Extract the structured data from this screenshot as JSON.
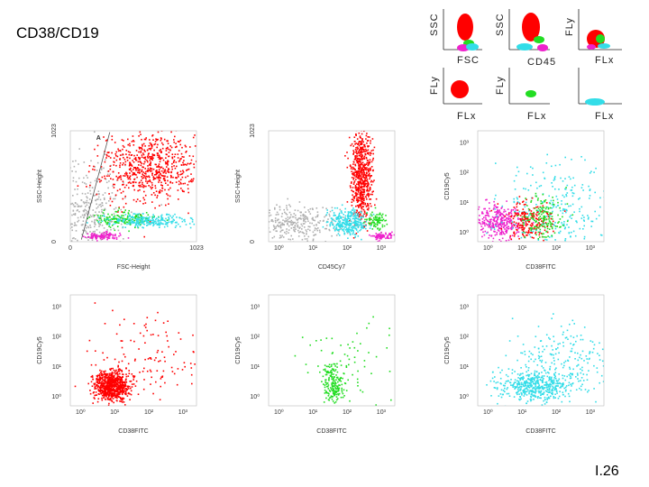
{
  "slide": {
    "title": "CD38/CD19",
    "number": "I.26"
  },
  "legend": {
    "cells": [
      {
        "ylabel": "SSC",
        "xlabel": "FSC"
      },
      {
        "ylabel": "SSC",
        "xlabel": "CD45"
      },
      {
        "ylabel": "FLy",
        "xlabel": "FLx"
      },
      {
        "ylabel": "FLy",
        "xlabel": "FLx"
      },
      {
        "ylabel": "FLy",
        "xlabel": "FLx"
      },
      {
        "ylabel": "",
        "xlabel": "FLx"
      }
    ]
  },
  "colors": {
    "red": "#ff0000",
    "green": "#22dd22",
    "cyan": "#33dde8",
    "magenta": "#ee22cc",
    "gray": "#b0b0b0"
  },
  "chart_data": [
    {
      "type": "scatter",
      "xlabel": "FSC-Height",
      "ylabel": "SSC-Height",
      "x_ticks": [
        "0",
        "1023"
      ],
      "y_ticks": [
        "0",
        "1023"
      ],
      "gate_label": "A",
      "series": [
        {
          "color": "gray",
          "cx": 150,
          "cy": 250,
          "sx": 150,
          "sy": 250,
          "n": 380
        },
        {
          "color": "red",
          "cx": 640,
          "cy": 700,
          "sx": 200,
          "sy": 160,
          "n": 700
        },
        {
          "color": "green",
          "cx": 430,
          "cy": 215,
          "sx": 120,
          "sy": 35,
          "n": 160
        },
        {
          "color": "cyan",
          "cx": 620,
          "cy": 200,
          "sx": 190,
          "sy": 30,
          "n": 240
        },
        {
          "color": "magenta",
          "cx": 270,
          "cy": 60,
          "sx": 70,
          "sy": 15,
          "n": 110
        }
      ]
    },
    {
      "type": "scatter",
      "xlabel": "CD45Cy7",
      "ylabel": "SSC-Height",
      "x_ticks": [
        "10⁰",
        "10¹",
        "10²",
        "10³"
      ],
      "y_ticks": [
        "0",
        "1023"
      ],
      "series": [
        {
          "color": "red",
          "cx": 2.4,
          "cy": 620,
          "sx": 0.15,
          "sy": 220,
          "n": 650
        },
        {
          "color": "gray",
          "cx": 0.4,
          "cy": 170,
          "sx": 0.6,
          "sy": 90,
          "n": 300
        },
        {
          "color": "cyan",
          "cx": 2.0,
          "cy": 175,
          "sx": 0.28,
          "sy": 60,
          "n": 300
        },
        {
          "color": "green",
          "cx": 2.85,
          "cy": 200,
          "sx": 0.12,
          "sy": 40,
          "n": 90
        },
        {
          "color": "magenta",
          "cx": 3.0,
          "cy": 60,
          "sx": 0.15,
          "sy": 15,
          "n": 80
        }
      ]
    },
    {
      "type": "scatter",
      "xlabel": "CD38FITC",
      "ylabel": "CD19Cy5",
      "x_ticks": [
        "10⁰",
        "10¹",
        "10²",
        "10³"
      ],
      "y_ticks": [
        "10⁰",
        "10¹",
        "10²",
        "10³"
      ],
      "series": [
        {
          "color": "magenta",
          "cx": 0.3,
          "cy": 0.4,
          "sx": 0.35,
          "sy": 0.3,
          "n": 320
        },
        {
          "color": "cyan",
          "cx": 1.9,
          "cy": 0.8,
          "sx": 0.8,
          "sy": 0.8,
          "n": 280
        },
        {
          "color": "red",
          "cx": 1.2,
          "cy": 0.4,
          "sx": 0.35,
          "sy": 0.3,
          "n": 200
        },
        {
          "color": "green",
          "cx": 1.6,
          "cy": 0.5,
          "sx": 0.3,
          "sy": 0.35,
          "n": 160
        }
      ]
    },
    {
      "type": "scatter",
      "xlabel": "CD38FITC",
      "ylabel": "CD19Cy5",
      "x_ticks": [
        "10⁰",
        "10¹",
        "10²",
        "10³"
      ],
      "y_ticks": [
        "10⁰",
        "10¹",
        "10²",
        "10³"
      ],
      "series": [
        {
          "color": "red",
          "cx": 0.9,
          "cy": 0.4,
          "sx": 0.25,
          "sy": 0.25,
          "n": 800
        },
        {
          "color": "red",
          "cx": 2.0,
          "cy": 1.2,
          "sx": 0.9,
          "sy": 0.8,
          "n": 120
        }
      ]
    },
    {
      "type": "scatter",
      "xlabel": "CD38FITC",
      "ylabel": "CD19Cy5",
      "x_ticks": [
        "10⁰",
        "10¹",
        "10²",
        "10³"
      ],
      "y_ticks": [
        "10⁰",
        "10¹",
        "10²",
        "10³"
      ],
      "series": [
        {
          "color": "green",
          "cx": 1.6,
          "cy": 0.45,
          "sx": 0.15,
          "sy": 0.3,
          "n": 180
        },
        {
          "color": "green",
          "cx": 2.0,
          "cy": 1.2,
          "sx": 0.7,
          "sy": 0.7,
          "n": 60
        }
      ]
    },
    {
      "type": "scatter",
      "xlabel": "CD38FITC",
      "ylabel": "CD19Cy5",
      "x_ticks": [
        "10⁰",
        "10¹",
        "10²",
        "10³"
      ],
      "y_ticks": [
        "10⁰",
        "10¹",
        "10²",
        "10³"
      ],
      "series": [
        {
          "color": "cyan",
          "cx": 1.4,
          "cy": 0.4,
          "sx": 0.55,
          "sy": 0.25,
          "n": 500
        },
        {
          "color": "cyan",
          "cx": 2.2,
          "cy": 1.3,
          "sx": 0.8,
          "sy": 0.6,
          "n": 200
        }
      ]
    }
  ]
}
